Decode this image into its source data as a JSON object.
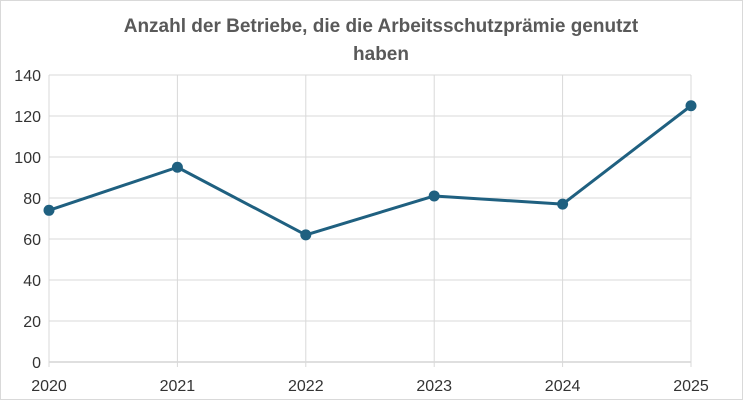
{
  "chart_data": {
    "type": "line",
    "title_lines": [
      "Anzahl der Betriebe, die die Arbeitsschutzprämie genutzt",
      "haben"
    ],
    "x": [
      "2020",
      "2021",
      "2022",
      "2023",
      "2024",
      "2025"
    ],
    "series": [
      {
        "values": [
          74,
          95,
          62,
          81,
          77,
          125
        ],
        "color": "#1f6080"
      }
    ],
    "ylim": [
      0,
      140
    ],
    "yticks": [
      0,
      20,
      40,
      60,
      80,
      100,
      120,
      140
    ],
    "grid": true,
    "legend": "none",
    "xlabel": "",
    "ylabel": ""
  }
}
